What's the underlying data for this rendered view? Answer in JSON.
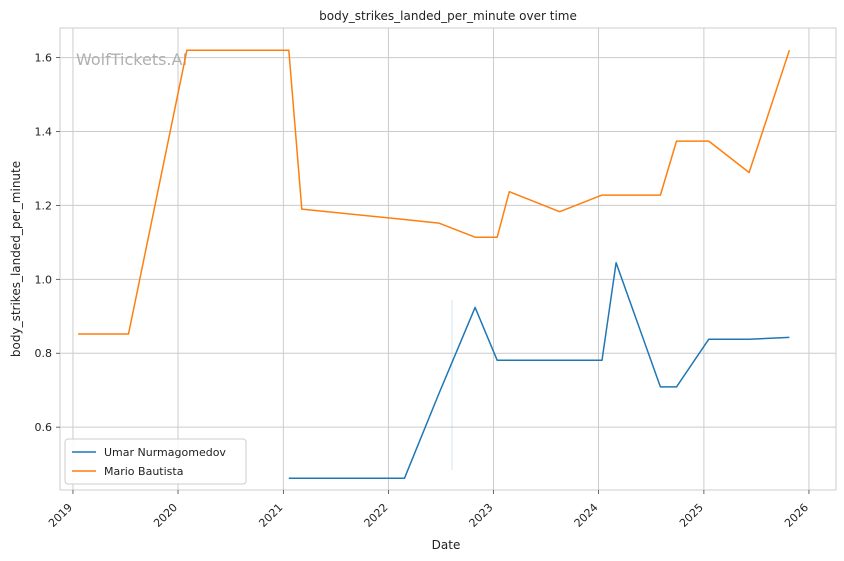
{
  "chart_data": {
    "type": "line",
    "title": "body_strikes_landed_per_minute over time",
    "xlabel": "Date",
    "ylabel": "body_strikes_landed_per_minute",
    "watermark": "WolfTickets.AI",
    "x_ticks": [
      "2019",
      "2020",
      "2021",
      "2022",
      "2023",
      "2024",
      "2025",
      "2026"
    ],
    "y_ticks": [
      "0.6",
      "0.8",
      "1.0",
      "1.2",
      "1.4",
      "1.6"
    ],
    "xlim": [
      "2018-11-17",
      "2026-04-05"
    ],
    "ylim": [
      0.43,
      1.68
    ],
    "grid": true,
    "legend_position": "lower-left",
    "series": [
      {
        "name": "Umar Nurmagomedov",
        "color": "#1f77b4",
        "points": [
          [
            "2021-01-20",
            0.462
          ],
          [
            "2022-02-26",
            0.462
          ],
          [
            "2022-06-25",
            0.69
          ],
          [
            "2022-10-29",
            0.924
          ],
          [
            "2023-01-14",
            0.781
          ],
          [
            "2024-01-13",
            0.781
          ],
          [
            "2024-03-02",
            1.045
          ],
          [
            "2024-08-03",
            0.709
          ],
          [
            "2024-09-28",
            0.709
          ],
          [
            "2025-01-18",
            0.838
          ],
          [
            "2025-06-07",
            0.838
          ],
          [
            "2025-10-25",
            0.843
          ]
        ]
      },
      {
        "name": "Mario Bautista",
        "color": "#ff7f0e",
        "points": [
          [
            "2019-01-19",
            0.852
          ],
          [
            "2019-07-13",
            0.852
          ],
          [
            "2020-02-01",
            1.62
          ],
          [
            "2021-01-20",
            1.62
          ],
          [
            "2021-03-06",
            1.19
          ],
          [
            "2022-02-26",
            1.162
          ],
          [
            "2022-06-25",
            1.152
          ],
          [
            "2022-10-29",
            1.114
          ],
          [
            "2023-01-14",
            1.114
          ],
          [
            "2023-02-25",
            1.237
          ],
          [
            "2023-08-19",
            1.183
          ],
          [
            "2024-01-13",
            1.228
          ],
          [
            "2024-08-03",
            1.228
          ],
          [
            "2024-09-28",
            1.374
          ],
          [
            "2025-01-18",
            1.374
          ],
          [
            "2025-06-07",
            1.289
          ],
          [
            "2025-10-25",
            1.62
          ]
        ]
      }
    ]
  }
}
